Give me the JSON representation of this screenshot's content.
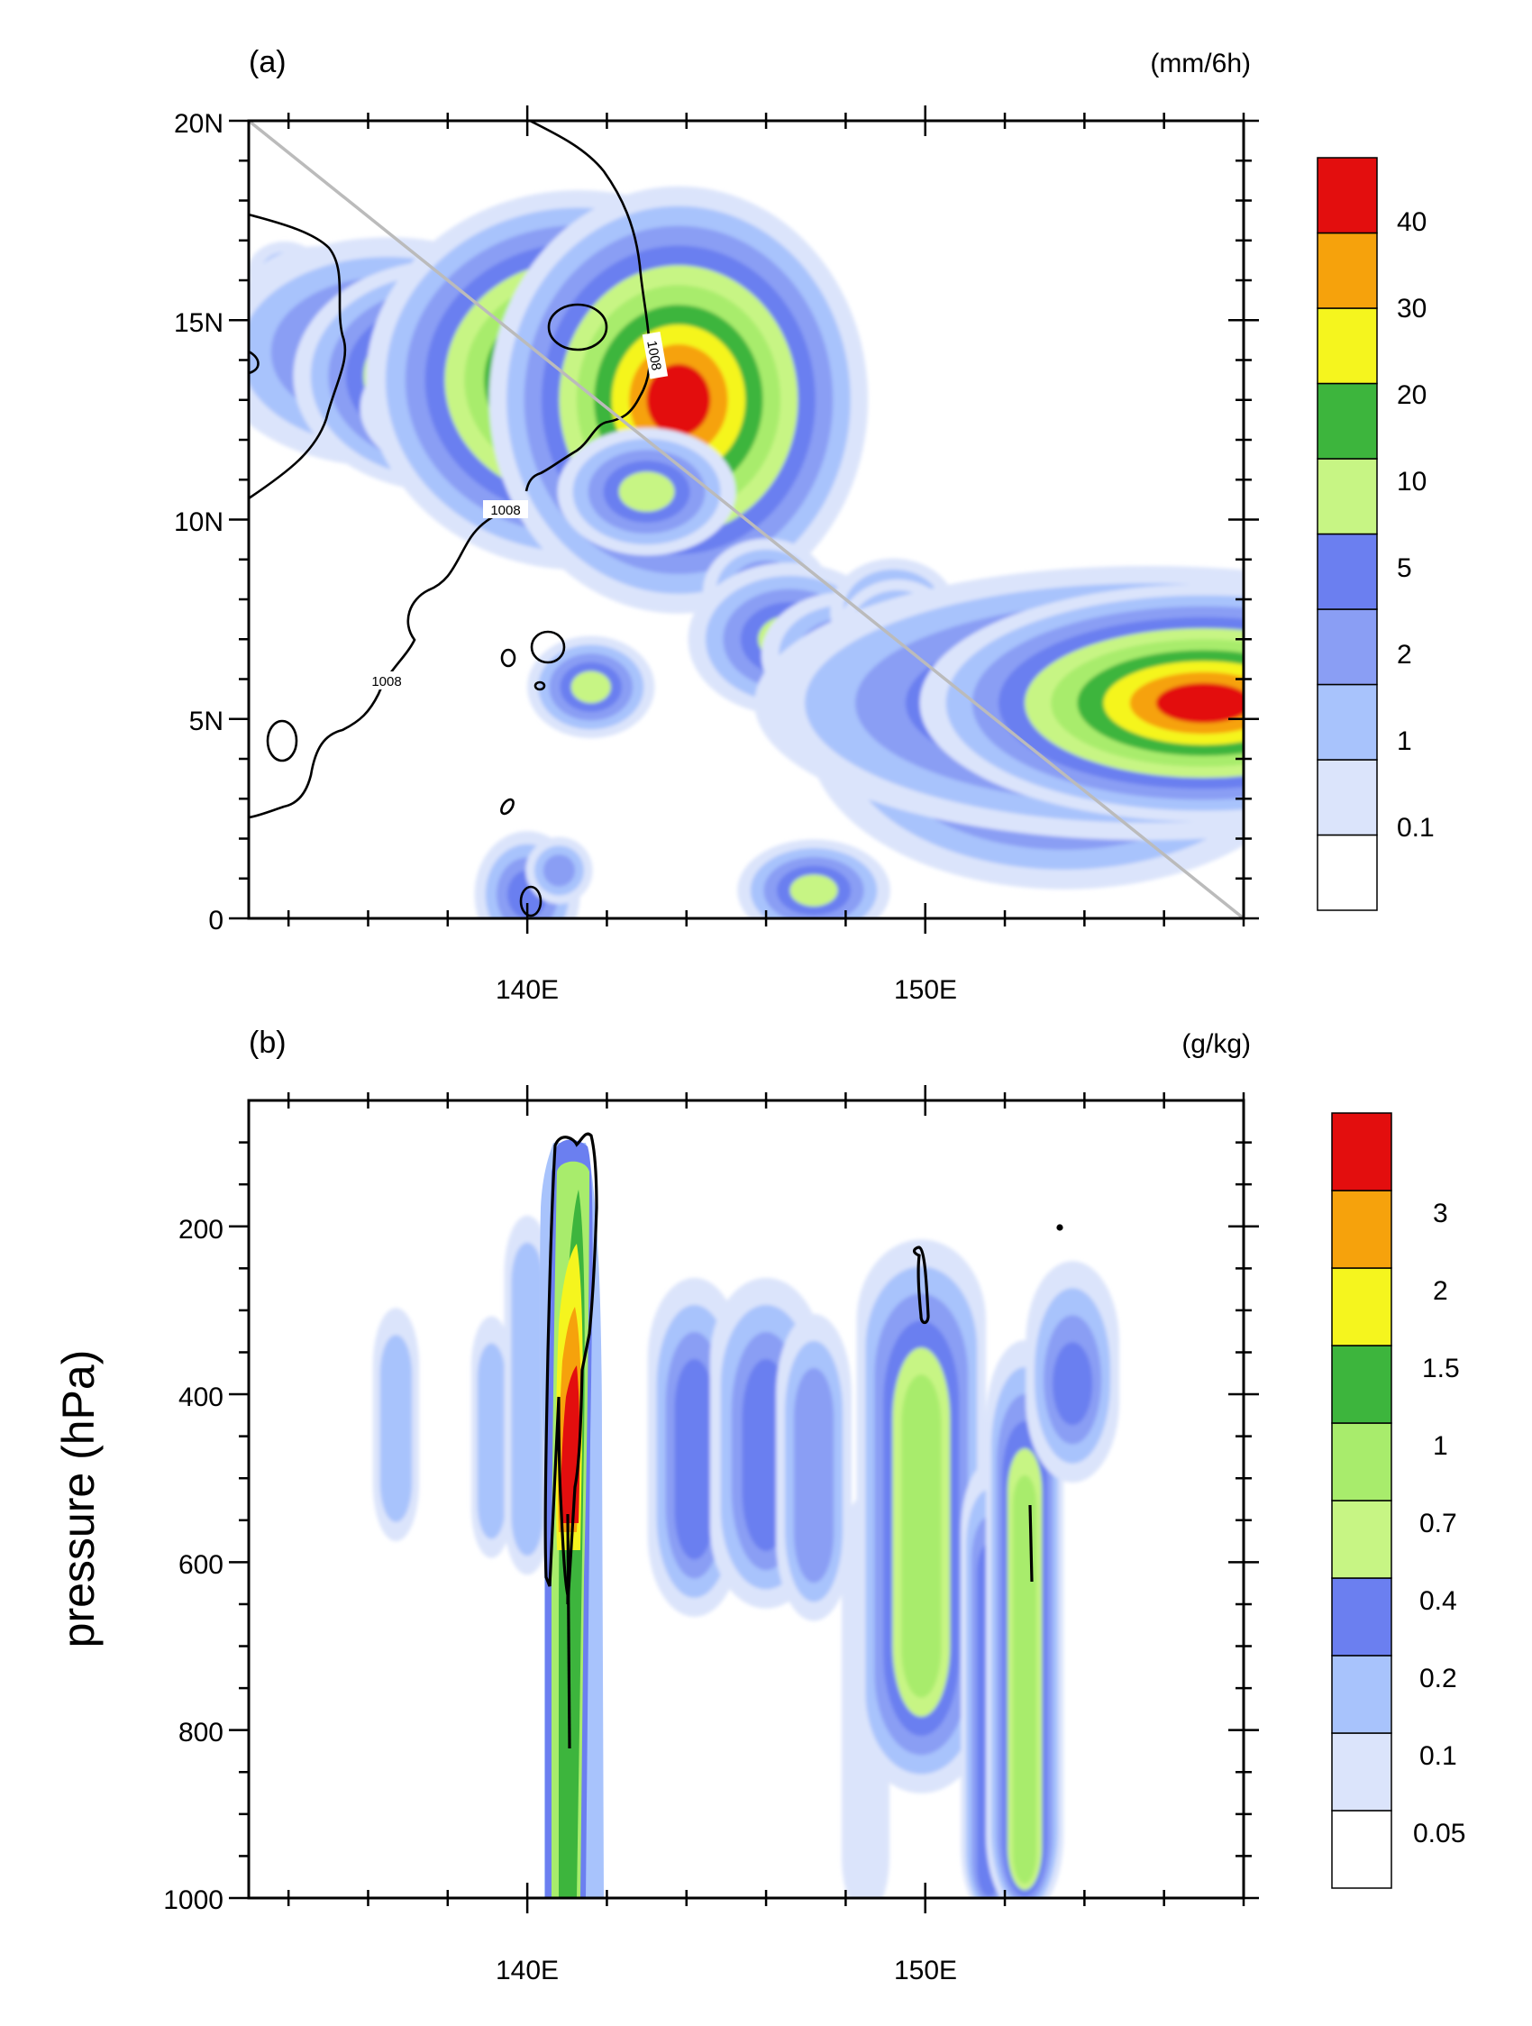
{
  "colors": {
    "white": "#ffffff",
    "c1": "#dbe4fb",
    "c2": "#a8c3fc",
    "c3": "#8a9ef4",
    "c4": "#6b7ff0",
    "c5": "#c7f584",
    "c6": "#a8ec6c",
    "c7": "#3db53d",
    "c8": "#f5f51e",
    "c9": "#f6a20c",
    "c10": "#e30e0e",
    "diag": "#bbbbbb"
  },
  "chart_data": [
    {
      "id": "a",
      "type": "heatmap",
      "panel_label": "(a)",
      "units": "(mm/6h)",
      "x_ticks": [
        "140E",
        "150E"
      ],
      "y_ticks": [
        "20N",
        "15N",
        "10N",
        "5N",
        "0"
      ],
      "xlim": [
        133,
        158
      ],
      "ylim": [
        0,
        20
      ],
      "isobar_label": "1008",
      "cross_section": {
        "from": [
          133,
          20
        ],
        "to": [
          158,
          0
        ]
      },
      "legend": [
        "0.1",
        "1",
        "2",
        "5",
        "10",
        "20",
        "30",
        "40"
      ],
      "precip_cells": [
        {
          "lon": 133.9,
          "lat": 16.2,
          "rx": 0.6,
          "ry": 0.5,
          "level": 2
        },
        {
          "lon": 134.8,
          "lat": 15.6,
          "rx": 0.9,
          "ry": 0.6,
          "level": 3
        },
        {
          "lon": 136.5,
          "lat": 14.2,
          "rx": 1.4,
          "ry": 0.9,
          "level": 5
        },
        {
          "lon": 138.0,
          "lat": 13.6,
          "rx": 0.8,
          "ry": 0.6,
          "level": 8
        },
        {
          "lon": 139.0,
          "lat": 12.8,
          "rx": 1.0,
          "ry": 0.6,
          "level": 5
        },
        {
          "lon": 141.3,
          "lat": 13.5,
          "rx": 0.9,
          "ry": 0.8,
          "level": 10
        },
        {
          "lon": 143.8,
          "lat": 13.0,
          "rx": 0.8,
          "ry": 0.9,
          "level": 10
        },
        {
          "lon": 143.0,
          "lat": 10.7,
          "rx": 0.7,
          "ry": 0.5,
          "level": 5
        },
        {
          "lon": 146.0,
          "lat": 8.2,
          "rx": 0.6,
          "ry": 0.5,
          "level": 4
        },
        {
          "lon": 146.6,
          "lat": 7.0,
          "rx": 0.8,
          "ry": 0.6,
          "level": 5
        },
        {
          "lon": 148.0,
          "lat": 6.6,
          "rx": 0.8,
          "ry": 0.6,
          "level": 4
        },
        {
          "lon": 149.2,
          "lat": 7.7,
          "rx": 0.6,
          "ry": 0.5,
          "level": 4
        },
        {
          "lon": 149.3,
          "lat": 6.9,
          "rx": 0.5,
          "ry": 0.5,
          "level": 5
        },
        {
          "lon": 141.6,
          "lat": 5.8,
          "rx": 0.5,
          "ry": 0.4,
          "level": 5
        },
        {
          "lon": 150.0,
          "lat": 3.6,
          "rx": 0.7,
          "ry": 0.5,
          "level": 4
        },
        {
          "lon": 153.5,
          "lat": 4.6,
          "rx": 1.5,
          "ry": 0.9,
          "level": 7
        },
        {
          "lon": 153.0,
          "lat": 4.3,
          "rx": 0.3,
          "ry": 0.2,
          "level": 8
        },
        {
          "lon": 155.6,
          "lat": 5.4,
          "rx": 2.3,
          "ry": 0.8,
          "level": 7
        },
        {
          "lon": 157.0,
          "lat": 5.4,
          "rx": 1.2,
          "ry": 0.5,
          "level": 10
        },
        {
          "lon": 140.0,
          "lat": 0.6,
          "rx": 0.5,
          "ry": 0.6,
          "level": 4
        },
        {
          "lon": 140.8,
          "lat": 1.2,
          "rx": 0.4,
          "ry": 0.4,
          "level": 3
        },
        {
          "lon": 147.2,
          "lat": 0.7,
          "rx": 0.6,
          "ry": 0.4,
          "level": 5
        }
      ]
    },
    {
      "id": "b",
      "type": "heatmap",
      "panel_label": "(b)",
      "units": "(g/kg)",
      "ylabel": "pressure (hPa)",
      "x_ticks": [
        "140E",
        "150E"
      ],
      "y_ticks": [
        "200",
        "400",
        "600",
        "800",
        "1000"
      ],
      "xlim": [
        133,
        158
      ],
      "ylim": [
        1000,
        50
      ],
      "legend": [
        "0.05",
        "0.1",
        "0.2",
        "0.4",
        "0.7",
        "1",
        "1.5",
        "2",
        "3"
      ],
      "columns": [
        {
          "lon": 136.7,
          "p_top": 310,
          "p_bot": 560,
          "w": 0.4,
          "level": 2
        },
        {
          "lon": 139.1,
          "p_top": 320,
          "p_bot": 580,
          "w": 0.35,
          "level": 2
        },
        {
          "lon": 140.0,
          "p_top": 200,
          "p_bot": 600,
          "w": 0.4,
          "level": 2
        },
        {
          "lon": 144.2,
          "p_top": 300,
          "p_bot": 620,
          "w": 0.5,
          "level": 4
        },
        {
          "lon": 146.0,
          "p_top": 300,
          "p_bot": 610,
          "w": 0.6,
          "level": 4
        },
        {
          "lon": 147.2,
          "p_top": 330,
          "p_bot": 640,
          "w": 0.5,
          "level": 3
        },
        {
          "lon": 148.5,
          "p_top": 520,
          "p_bot": 1000,
          "w": 0.6,
          "level": 1
        },
        {
          "lon": 149.9,
          "p_top": 280,
          "p_bot": 800,
          "w": 0.5,
          "level": 6
        },
        {
          "lon": 151.6,
          "p_top": 520,
          "p_bot": 1000,
          "w": 0.3,
          "level": 4
        },
        {
          "lon": 152.5,
          "p_top": 400,
          "p_bot": 1000,
          "w": 0.3,
          "level": 6
        },
        {
          "lon": 153.7,
          "p_top": 280,
          "p_bot": 460,
          "w": 0.5,
          "level": 4
        }
      ]
    }
  ]
}
